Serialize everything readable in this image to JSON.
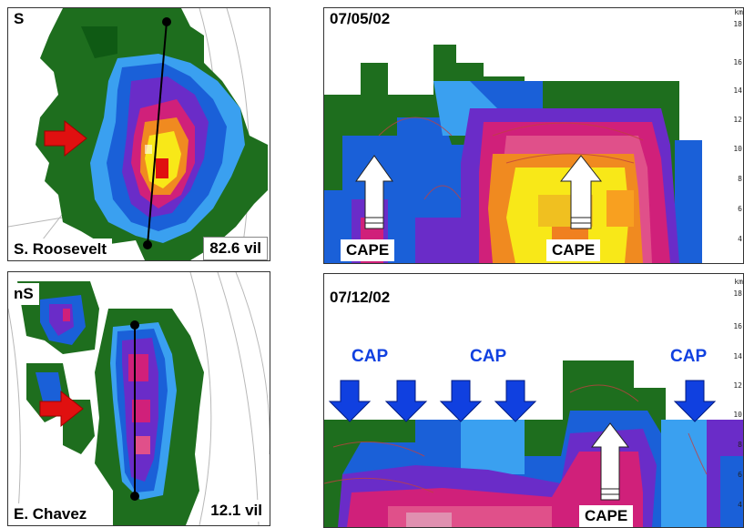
{
  "panel_tl": {
    "corner_label": "S",
    "station_label": "S. Roosevelt",
    "vil_label": "82.6 vil"
  },
  "panel_tr": {
    "date_label": "07/05/02",
    "cape_labels": [
      "CAPE",
      "CAPE"
    ],
    "axis_unit": "km",
    "axis_ticks": [
      "18",
      "16",
      "14",
      "12",
      "10",
      "8",
      "6",
      "4"
    ]
  },
  "panel_bl": {
    "corner_label": "nS",
    "station_label": "E. Chavez",
    "vil_label": "12.1 vil"
  },
  "panel_br": {
    "date_label": "07/12/02",
    "cap_labels": [
      "CAP",
      "CAP",
      "CAP"
    ],
    "cape_label": "CAPE",
    "axis_unit": "km",
    "axis_ticks": [
      "18",
      "16",
      "14",
      "12",
      "10",
      "8",
      "6",
      "4"
    ]
  },
  "colors": {
    "green": "#1e6e1e",
    "dark_green": "#0f5a14",
    "blue": "#1a60d8",
    "light_blue": "#3aa0f0",
    "purple": "#6a2cc8",
    "magenta": "#d0207a",
    "pink": "#e0508a",
    "orange": "#f08a20",
    "yellow": "#f8e818",
    "red": "#e01010",
    "cap_arrow": "#1040e0"
  }
}
